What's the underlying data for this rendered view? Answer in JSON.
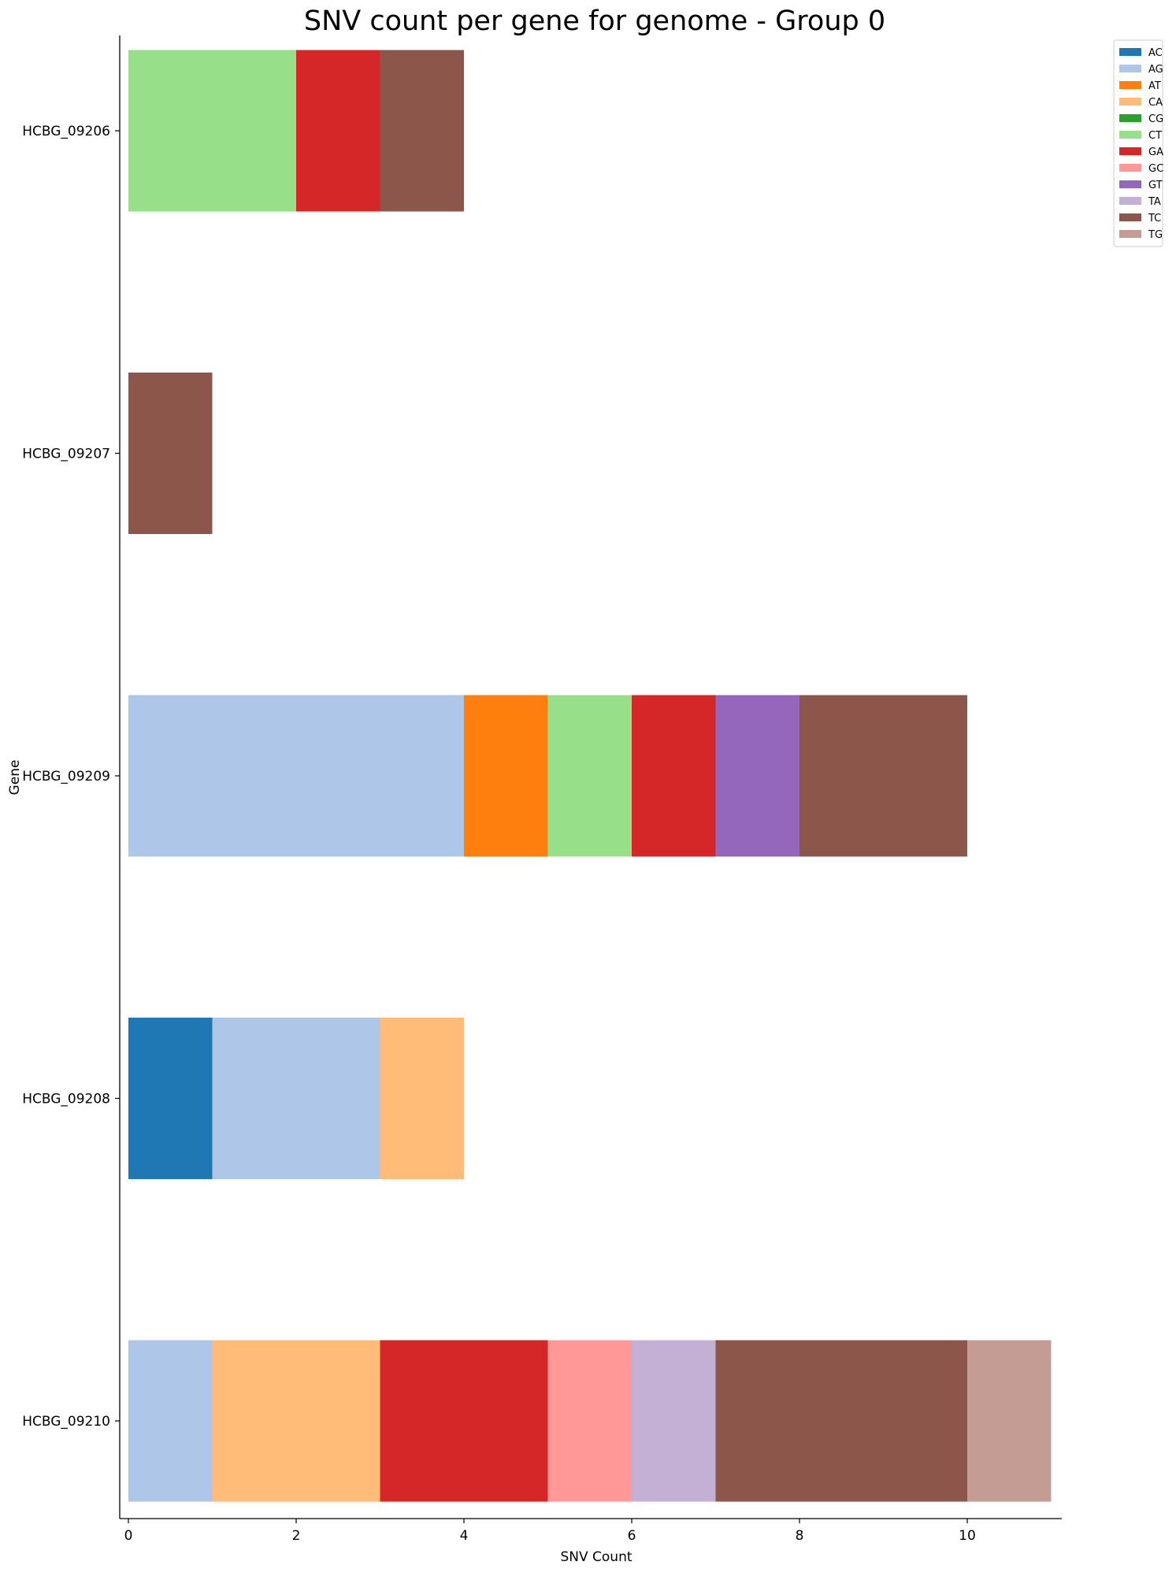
{
  "chart_data": {
    "type": "bar",
    "orientation": "horizontal",
    "stacked": true,
    "title": "SNV count per gene for genome - Group 0",
    "xlabel": "SNV Count",
    "ylabel": "Gene",
    "xlim": [
      0,
      11.1
    ],
    "xticks": [
      0,
      2,
      4,
      6,
      8,
      10
    ],
    "grid": false,
    "legend_position": "top-right",
    "categories": [
      "HCBG_09206",
      "HCBG_09207",
      "HCBG_09209",
      "HCBG_09208",
      "HCBG_09210"
    ],
    "series": [
      {
        "name": "AC",
        "color": "#1f77b4",
        "values": [
          0,
          0,
          0,
          1,
          0
        ]
      },
      {
        "name": "AG",
        "color": "#aec7e8",
        "values": [
          0,
          0,
          4,
          2,
          1
        ]
      },
      {
        "name": "AT",
        "color": "#ff7f0e",
        "values": [
          0,
          0,
          1,
          0,
          0
        ]
      },
      {
        "name": "CA",
        "color": "#ffbb78",
        "values": [
          0,
          0,
          0,
          1,
          2
        ]
      },
      {
        "name": "CG",
        "color": "#2ca02c",
        "values": [
          0,
          0,
          0,
          0,
          0
        ]
      },
      {
        "name": "CT",
        "color": "#98df8a",
        "values": [
          2,
          0,
          1,
          0,
          0
        ]
      },
      {
        "name": "GA",
        "color": "#d62728",
        "values": [
          1,
          0,
          1,
          0,
          2
        ]
      },
      {
        "name": "GC",
        "color": "#ff9896",
        "values": [
          0,
          0,
          0,
          0,
          1
        ]
      },
      {
        "name": "GT",
        "color": "#9467bd",
        "values": [
          0,
          0,
          1,
          0,
          0
        ]
      },
      {
        "name": "TA",
        "color": "#c5b0d5",
        "values": [
          0,
          0,
          0,
          0,
          1
        ]
      },
      {
        "name": "TC",
        "color": "#8c564b",
        "values": [
          1,
          1,
          2,
          0,
          3
        ]
      },
      {
        "name": "TG",
        "color": "#c49c94",
        "values": [
          0,
          0,
          0,
          0,
          1
        ]
      }
    ]
  }
}
